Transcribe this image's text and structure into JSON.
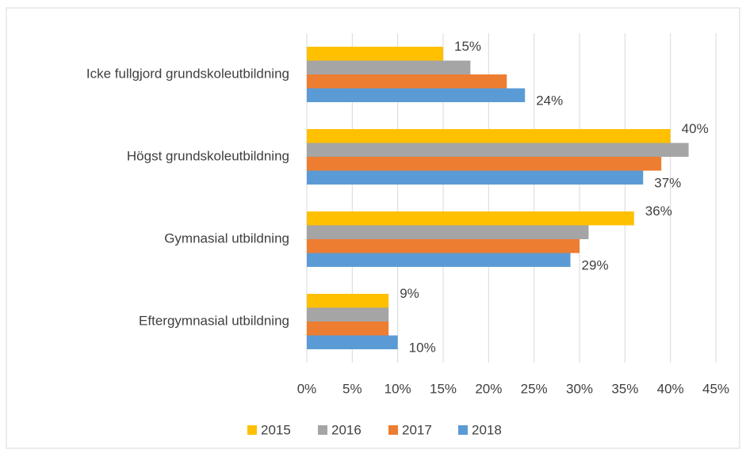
{
  "chart_data": {
    "type": "bar",
    "orientation": "horizontal",
    "categories": [
      "Icke fullgjord grundskoleutbildning",
      "Högst grundskoleutbildning",
      "Gymnasial utbildning",
      "Eftergymnasial utbildning"
    ],
    "series": [
      {
        "name": "2015",
        "color": "#FFC000",
        "values": [
          15,
          40,
          36,
          9
        ],
        "value_labels": [
          "15%",
          "40%",
          "36%",
          "9%"
        ]
      },
      {
        "name": "2016",
        "color": "#A5A5A5",
        "values": [
          18,
          42,
          31,
          9
        ]
      },
      {
        "name": "2017",
        "color": "#ED7D31",
        "values": [
          22,
          39,
          30,
          9
        ]
      },
      {
        "name": "2018",
        "color": "#5B9BD5",
        "values": [
          24,
          37,
          29,
          10
        ],
        "value_labels": [
          "24%",
          "37%",
          "29%",
          "10%"
        ]
      }
    ],
    "xlim": [
      0,
      45
    ],
    "xticks": [
      {
        "value": 0,
        "label": "0%"
      },
      {
        "value": 5,
        "label": "5%"
      },
      {
        "value": 10,
        "label": "10%"
      },
      {
        "value": 15,
        "label": "15%"
      },
      {
        "value": 20,
        "label": "20%"
      },
      {
        "value": 25,
        "label": "25%"
      },
      {
        "value": 30,
        "label": "30%"
      },
      {
        "value": 35,
        "label": "35%"
      },
      {
        "value": 40,
        "label": "40%"
      },
      {
        "value": 45,
        "label": "45%"
      }
    ],
    "grid": true,
    "legend": "bottom"
  }
}
